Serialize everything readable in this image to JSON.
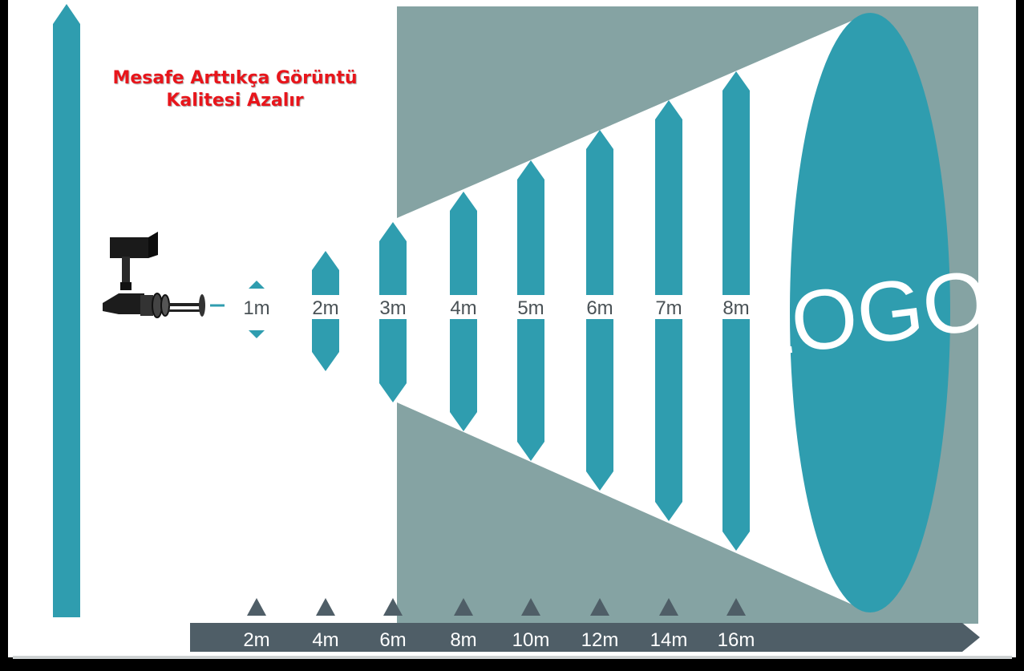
{
  "caption": {
    "line1": "Mesafe Arttıkça Görüntü",
    "line2": "Kalitesi Azalır"
  },
  "logo_text": "LOGO",
  "image_sizes": [
    "1m",
    "2m",
    "3m",
    "4m",
    "5m",
    "6m",
    "7m",
    "8m"
  ],
  "distances": [
    "2m",
    "4m",
    "6m",
    "8m",
    "10m",
    "12m",
    "14m",
    "16m"
  ],
  "colors": {
    "teal": "#2f9daf",
    "gray_beam": "#85a3a3",
    "axis_bar": "#4f5e67",
    "caption": "#e8151b",
    "frame": "#000000"
  },
  "icons": [
    "gobo-projector-icon",
    "size-arrow-icon",
    "distance-marker-icon",
    "axis-arrow-icon"
  ]
}
